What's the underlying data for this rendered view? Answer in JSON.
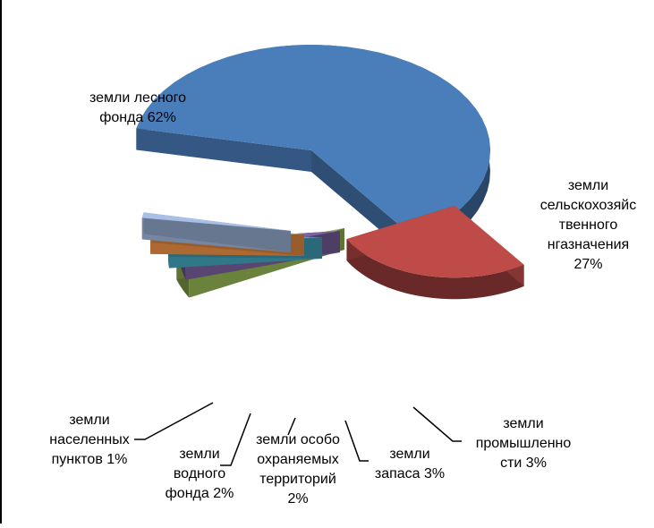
{
  "chart_data": {
    "type": "pie",
    "style": "3d-exploded",
    "slices": [
      {
        "key": "forest",
        "label": "земли лесного\nфонда 62%",
        "value": 62,
        "color": "#4A7EBB"
      },
      {
        "key": "agri",
        "label": "земли\nсельскохозяйс\nтвенного\nнгазначения\n27%",
        "value": 27,
        "color": "#BE4B48"
      },
      {
        "key": "industry",
        "label": "земли\nпромышленно\nсти 3%",
        "value": 3,
        "color": "#98B954"
      },
      {
        "key": "reserve",
        "label": "земли\nзапаса 3%",
        "value": 3,
        "color": "#7E62A1"
      },
      {
        "key": "protected",
        "label": "земли особо\nохраняемых\nтерриторий\n2%",
        "value": 2,
        "color": "#46AAC5"
      },
      {
        "key": "water",
        "label": "земли\nводного\nфонда 2%",
        "value": 2,
        "color": "#F79646"
      },
      {
        "key": "settle",
        "label": "земли\nнаселенных\nпунктов 1%",
        "value": 1,
        "color": "#A8C0E8"
      }
    ]
  }
}
